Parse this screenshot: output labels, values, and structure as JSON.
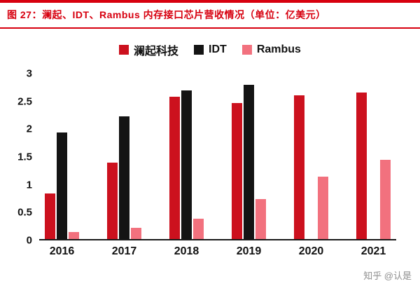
{
  "title": "图 27：澜起、IDT、Rambus 内存接口芯片营收情况（单位：亿美元）",
  "watermark": "知乎 @认是",
  "colors": {
    "accent_red": "#d7000f",
    "axis": "#1a1a1a",
    "watermark_gray": "#8e8e8e"
  },
  "chart_data": {
    "type": "bar",
    "title": "图 27：澜起、IDT、Rambus 内存接口芯片营收情况（单位：亿美元）",
    "categories": [
      "2016",
      "2017",
      "2018",
      "2019",
      "2020",
      "2021"
    ],
    "series": [
      {
        "name": "澜起科技",
        "color": "#cc111e",
        "values": [
          0.83,
          1.39,
          2.58,
          2.47,
          2.6,
          2.66
        ]
      },
      {
        "name": "IDT",
        "color": "#141414",
        "values": [
          1.93,
          2.23,
          2.7,
          2.8,
          null,
          null
        ]
      },
      {
        "name": "Rambus",
        "color": "#f2717e",
        "values": [
          0.13,
          0.2,
          0.37,
          0.73,
          1.13,
          1.44
        ]
      }
    ],
    "xlabel": "",
    "ylabel": "",
    "ylim": [
      0,
      3
    ],
    "yticks": [
      0,
      0.5,
      1,
      1.5,
      2,
      2.5,
      3
    ],
    "grid": false,
    "legend_position": "top"
  }
}
